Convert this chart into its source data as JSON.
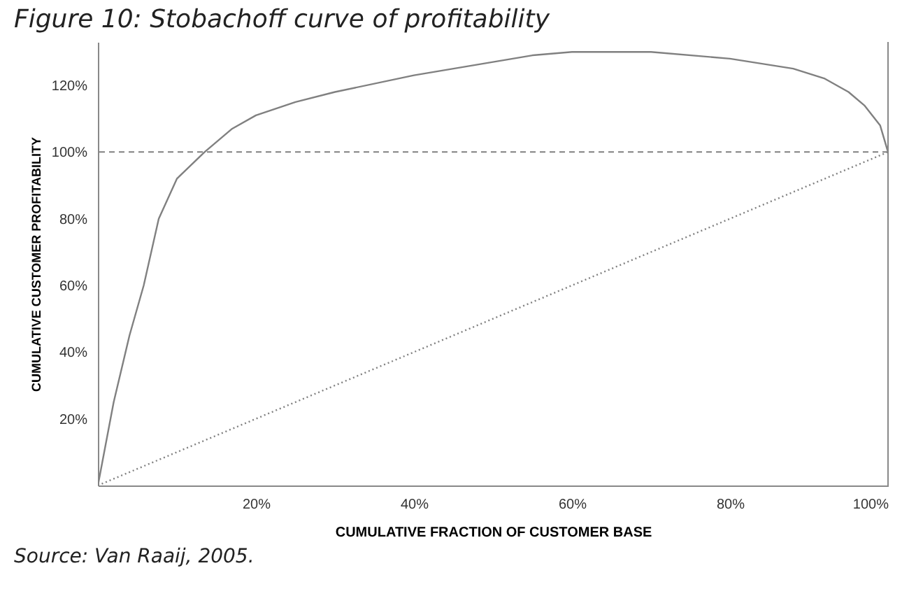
{
  "chart_data": {
    "type": "line",
    "title": "Figure 10: Stobachoff curve of profitability",
    "xlabel": "CUMULATIVE FRACTION OF CUSTOMER BASE",
    "ylabel": "CUMULATIVE CUSTOMER PROFITABILITY",
    "series": [
      {
        "color": "#808080",
        "line_style": "solid",
        "x": [
          0,
          2,
          4,
          5.8,
          7.7,
          10,
          13.5,
          17,
          20,
          25,
          30,
          40,
          50,
          55,
          60,
          70,
          80,
          88,
          92,
          95,
          97,
          99,
          100
        ],
        "values": [
          0,
          25,
          45,
          60,
          80,
          92,
          100,
          107,
          111,
          115,
          118,
          123,
          127,
          129,
          130,
          130,
          128,
          125,
          122,
          118,
          114,
          108,
          100
        ]
      },
      {
        "color": "#808080",
        "line_style": "dotted",
        "x": [
          0,
          100
        ],
        "values": [
          0,
          100
        ]
      }
    ],
    "xlim": [
      0,
      100
    ],
    "ylim": [
      0,
      133
    ],
    "xticks": [
      {
        "value": 20,
        "label": "20%"
      },
      {
        "value": 40,
        "label": "40%"
      },
      {
        "value": 60,
        "label": "60%"
      },
      {
        "value": 80,
        "label": "80%"
      },
      {
        "value": 100,
        "label": "100%"
      }
    ],
    "yticks": [
      {
        "value": 20,
        "label": "20%"
      },
      {
        "value": 40,
        "label": "40%"
      },
      {
        "value": 60,
        "label": "60%"
      },
      {
        "value": 80,
        "label": "80%"
      },
      {
        "value": 100,
        "label": "100%"
      },
      {
        "value": 120,
        "label": "120%"
      }
    ],
    "ref_lines": [
      {
        "axis": "y",
        "value": 100,
        "line_style": "dashed",
        "color": "#808080"
      }
    ],
    "annotations": [
      "Source: Van Raaij, 2005."
    ],
    "grid": false
  }
}
